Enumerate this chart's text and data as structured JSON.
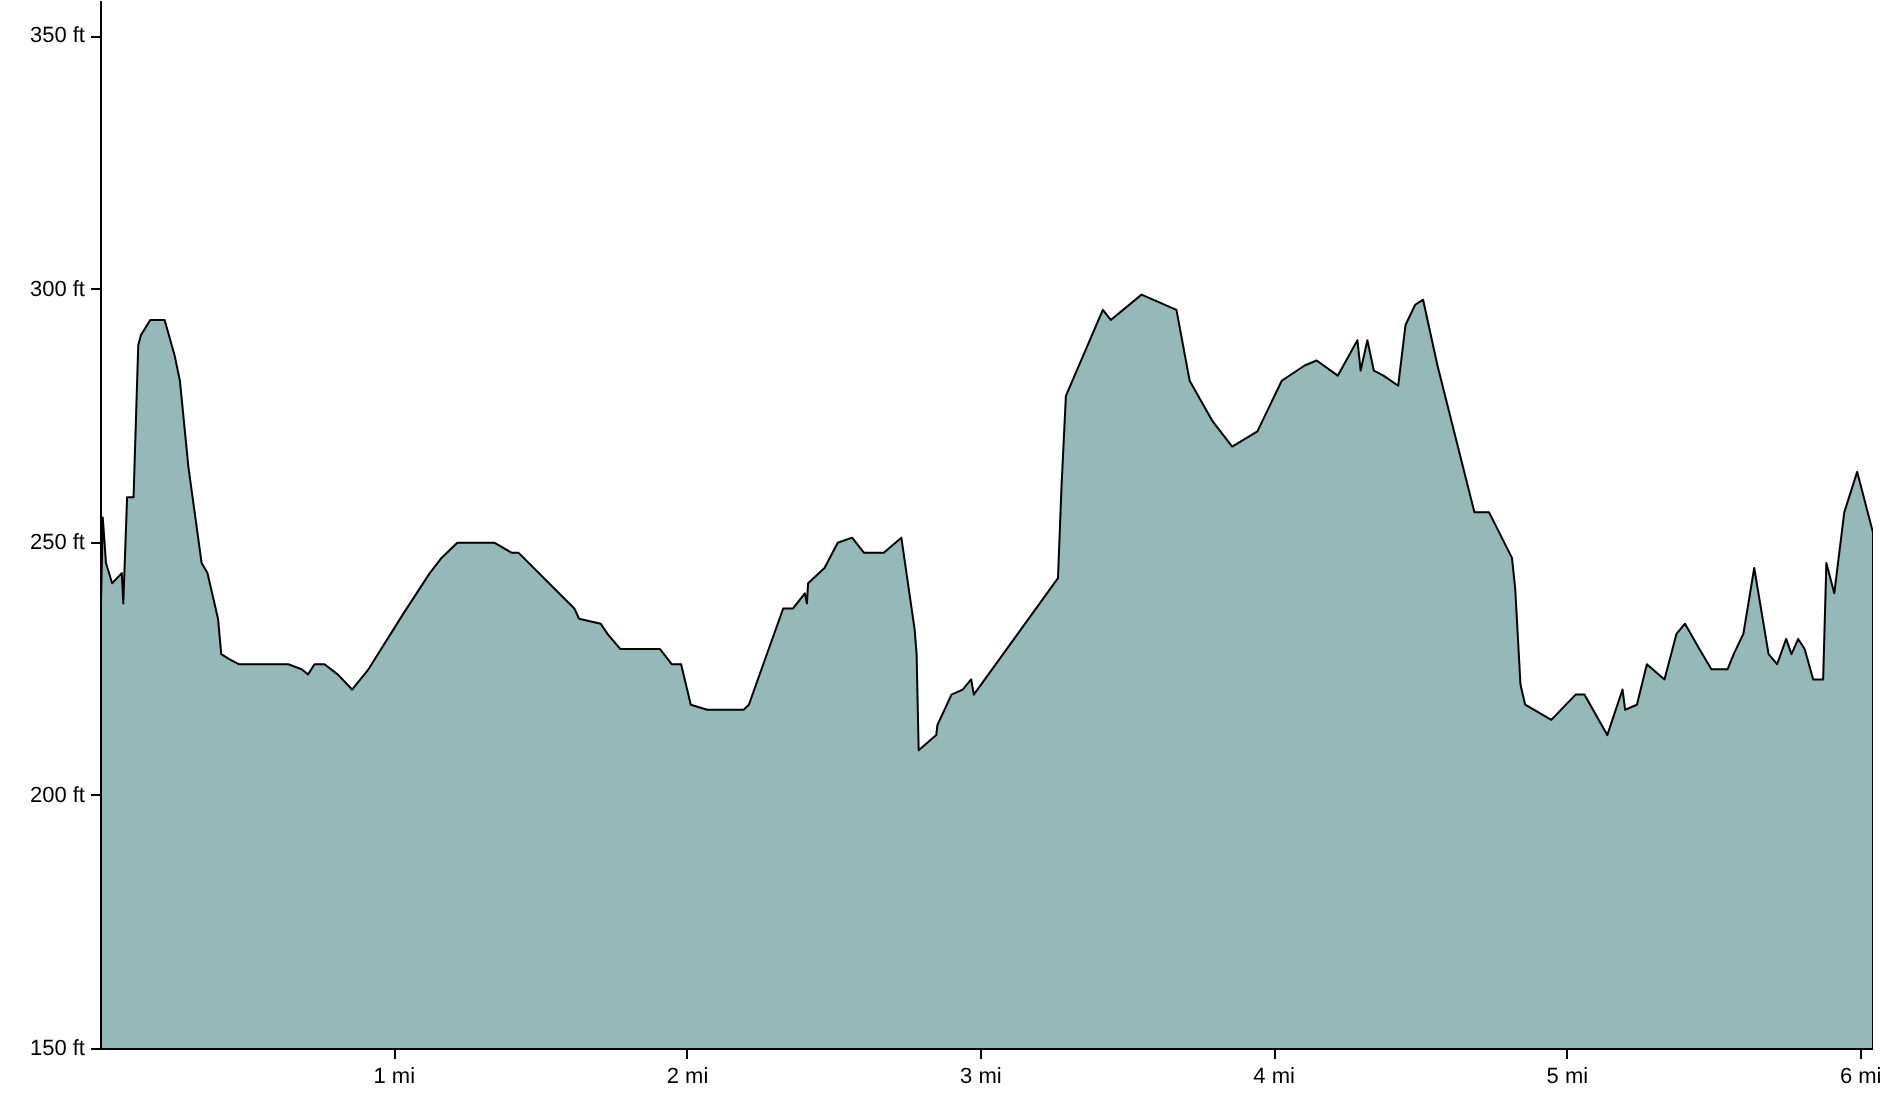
{
  "chart_data": {
    "type": "area",
    "color": "#95b9b9",
    "x": [
      0,
      0.006,
      0.017,
      0.038,
      0.071,
      0.076,
      0.089,
      0.111,
      0.127,
      0.136,
      0.168,
      0.217,
      0.251,
      0.269,
      0.298,
      0.343,
      0.363,
      0.399,
      0.41,
      0.437,
      0.47,
      0.639,
      0.684,
      0.706,
      0.728,
      0.762,
      0.807,
      0.84,
      0.856,
      0.912,
      1.031,
      1.121,
      1.161,
      1.215,
      1.341,
      1.401,
      1.424,
      1.614,
      1.63,
      1.704,
      1.727,
      1.771,
      1.906,
      1.946,
      1.978,
      2.011,
      2.067,
      2.191,
      2.209,
      2.326,
      2.359,
      2.4,
      2.407,
      2.411,
      2.467,
      2.512,
      2.561,
      2.602,
      2.669,
      2.729,
      2.774,
      2.781,
      2.788,
      2.848,
      2.852,
      2.9,
      2.938,
      2.967,
      2.976,
      3.263,
      3.275,
      3.29,
      3.416,
      3.443,
      3.548,
      3.667,
      3.712,
      3.79,
      3.857,
      3.943,
      4.026,
      4.104,
      4.145,
      4.217,
      4.284,
      4.295,
      4.318,
      4.34,
      4.373,
      4.423,
      4.448,
      4.481,
      4.508,
      4.557,
      4.683,
      4.733,
      4.811,
      4.822,
      4.84,
      4.856,
      4.945,
      5.028,
      5.058,
      5.136,
      5.188,
      5.197,
      5.237,
      5.271,
      5.331,
      5.372,
      5.401,
      5.45,
      5.491,
      5.546,
      5.567,
      5.6,
      5.637,
      5.686,
      5.715,
      5.746,
      5.764,
      5.787,
      5.809,
      5.838,
      5.872,
      5.883,
      5.91,
      5.944,
      5.988,
      6.042
    ],
    "values": [
      238,
      255,
      246,
      242,
      244,
      238,
      259,
      259,
      289,
      291,
      294,
      294,
      287,
      282,
      265,
      246,
      244,
      235,
      228,
      227,
      226,
      226,
      225,
      224,
      226,
      226,
      224,
      222,
      221,
      225,
      236,
      244,
      247,
      250,
      250,
      248,
      248,
      237,
      235,
      234,
      232,
      229,
      229,
      226,
      226,
      218,
      217,
      217,
      218,
      237,
      237,
      240,
      238,
      242,
      245,
      250,
      251,
      248,
      248,
      251,
      233,
      228,
      209,
      212,
      214,
      220,
      221,
      223,
      220,
      243,
      261,
      279,
      296,
      294,
      299,
      296,
      282,
      274,
      269,
      272,
      282,
      285,
      286,
      283,
      290,
      284,
      290,
      284,
      283,
      281,
      293,
      297,
      298,
      285,
      256,
      256,
      247,
      241,
      222,
      218,
      215,
      220,
      220,
      212,
      221,
      217,
      218,
      226,
      223,
      232,
      234,
      229,
      225,
      225,
      228,
      232,
      245,
      228,
      226,
      231,
      228,
      231,
      229,
      223,
      223,
      246,
      240,
      256,
      264,
      252
    ],
    "xlim": [
      0,
      6.042
    ],
    "ylim": [
      150,
      357
    ],
    "xticks": [
      {
        "value": 1,
        "label": "1 mi"
      },
      {
        "value": 2,
        "label": "2 mi"
      },
      {
        "value": 3,
        "label": "3 mi"
      },
      {
        "value": 4,
        "label": "4 mi"
      },
      {
        "value": 5,
        "label": "5 mi"
      },
      {
        "value": 6,
        "label": "6 mi"
      }
    ],
    "yticks": [
      {
        "value": 150,
        "label": "150 ft"
      },
      {
        "value": 200,
        "label": "200 ft"
      },
      {
        "value": 250,
        "label": "250 ft"
      },
      {
        "value": 300,
        "label": "300 ft"
      },
      {
        "value": 350,
        "label": "350 ft"
      }
    ]
  }
}
